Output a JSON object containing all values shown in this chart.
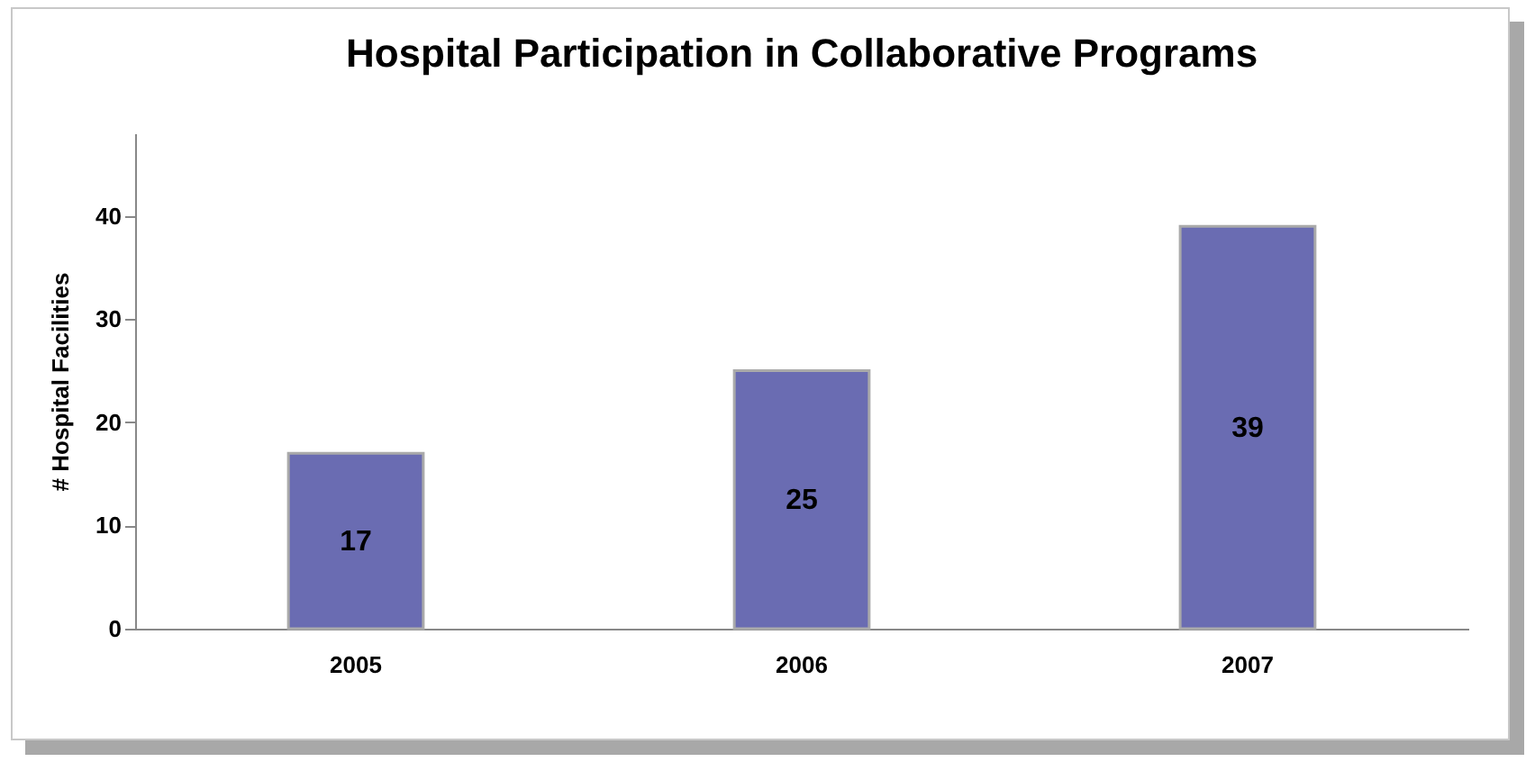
{
  "chart_data": {
    "type": "bar",
    "title": "Hospital Participation in Collaborative Programs",
    "ylabel": "# Hospital Facilities",
    "categories": [
      "2005",
      "2006",
      "2007"
    ],
    "values": [
      17,
      25,
      39
    ],
    "color": "#6a6cb2",
    "ylim": [
      0,
      48
    ],
    "yticks": [
      0,
      10,
      20,
      30,
      40
    ],
    "data_labels": true,
    "grid": false
  }
}
